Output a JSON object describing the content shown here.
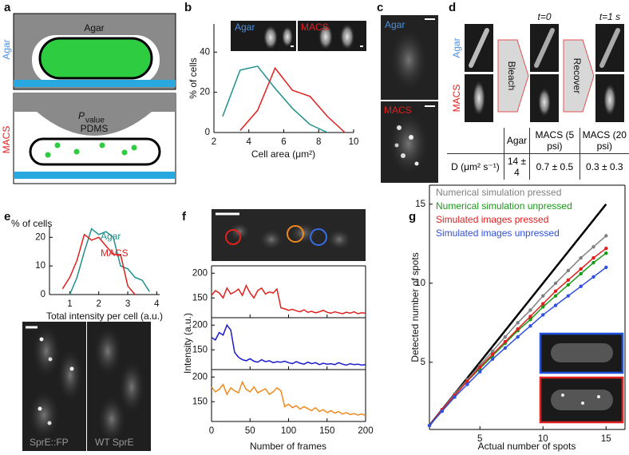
{
  "figure": {
    "panel_labels": [
      "a",
      "b",
      "c",
      "d",
      "e",
      "f",
      "g"
    ],
    "a": {
      "top_side": "Agar",
      "top_material": "Agar",
      "bottom_side": "MACS",
      "pressure_symbol": "P",
      "pressure_subscript": "value",
      "membrane": "PDMS"
    },
    "c": {
      "top": "Agar",
      "bottom": "MACS"
    },
    "d": {
      "rows": [
        "Agar",
        "MACS"
      ],
      "steps": [
        "Bleach",
        "Recover"
      ],
      "times": [
        "t=0",
        "t=1 s"
      ],
      "table": {
        "header": [
          "Agar",
          "MACS (5 psi)",
          "MACS (20 psi)"
        ],
        "row_label": "D (μm² s⁻¹)",
        "cells": [
          "14 ± 4",
          "0.7 ± 0.5",
          "0.3 ± 0.3"
        ]
      }
    },
    "e": {
      "images": [
        "SprE::FP",
        "WT SprE"
      ]
    }
  },
  "chart_data": [
    {
      "type": "line",
      "ylabel": "% of cells",
      "xlabel": "Cell area (μm²)",
      "x": [
        2.5,
        3.5,
        4.5,
        5.5,
        6.5,
        7.5,
        8.5,
        9.5
      ],
      "xlim": [
        2,
        10
      ],
      "xticks": [
        2,
        4,
        6,
        8,
        10
      ],
      "ylim": [
        0,
        54
      ],
      "yticks": [
        0,
        20,
        40
      ],
      "series": [
        {
          "name": "Agar",
          "color": "#1f8f8a",
          "values": [
            8,
            31,
            33,
            22,
            12,
            4,
            0,
            null
          ]
        },
        {
          "name": "MACS",
          "color": "#e02020",
          "values": [
            null,
            1,
            11,
            32,
            21,
            18,
            8,
            0
          ]
        }
      ]
    },
    {
      "type": "line",
      "ylabel": "% of cells",
      "xlabel": "Total intensity per cell (a.u.)",
      "legend": "upper right",
      "x": [
        0.75,
        1,
        1.25,
        1.5,
        1.75,
        2,
        2.25,
        2.5,
        2.75,
        3,
        3.25,
        3.5,
        3.75
      ],
      "xlim": [
        0.3,
        4.1
      ],
      "xticks": [
        1,
        2,
        3,
        4
      ],
      "ylim": [
        0,
        24
      ],
      "yticks": [
        0,
        10,
        20
      ],
      "series": [
        {
          "name": "Agar",
          "color": "#1f8f8a",
          "values": [
            null,
            0,
            6,
            15,
            23,
            21,
            22,
            20,
            10,
            9,
            6,
            5,
            1
          ]
        },
        {
          "name": "MACS",
          "color": "#e02020",
          "values": [
            2,
            6,
            12,
            21,
            19,
            20,
            17,
            14,
            14,
            3,
            0,
            null,
            null
          ]
        }
      ]
    },
    {
      "type": "line",
      "subplots": true,
      "ylabel": "Intensity (a.u.)",
      "xlabel": "Number of frames",
      "x": [
        0,
        5,
        10,
        15,
        20,
        25,
        30,
        35,
        40,
        45,
        50,
        55,
        60,
        65,
        70,
        75,
        80,
        85,
        90,
        95,
        100,
        105,
        110,
        115,
        120,
        125,
        130,
        135,
        140,
        145,
        150,
        155,
        160,
        165,
        170,
        175,
        180,
        185,
        190,
        195,
        200
      ],
      "xlim": [
        0,
        200
      ],
      "xticks": [
        0,
        50,
        100,
        150,
        200
      ],
      "ylim": [
        110,
        215
      ],
      "yticks": [
        150,
        200
      ],
      "series": [
        {
          "color": "#e0201c",
          "values": [
            155,
            165,
            160,
            150,
            170,
            158,
            162,
            168,
            155,
            175,
            160,
            150,
            165,
            170,
            158,
            162,
            160,
            168,
            130,
            128,
            125,
            127,
            124,
            122,
            126,
            121,
            123,
            120,
            122,
            125,
            121,
            119,
            122,
            120,
            118,
            121,
            119,
            122,
            118,
            120,
            119
          ]
        },
        {
          "color": "#1a1acc",
          "values": [
            175,
            170,
            185,
            180,
            200,
            190,
            145,
            135,
            130,
            128,
            132,
            127,
            125,
            130,
            126,
            128,
            124,
            126,
            125,
            127,
            124,
            122,
            126,
            123,
            121,
            125,
            122,
            124,
            120,
            123,
            121,
            122,
            120,
            124,
            121,
            119,
            122,
            120,
            121,
            119,
            120
          ]
        },
        {
          "color": "#f08a1c",
          "values": [
            180,
            170,
            175,
            185,
            165,
            178,
            172,
            168,
            190,
            175,
            170,
            180,
            168,
            172,
            176,
            165,
            170,
            178,
            172,
            140,
            145,
            138,
            142,
            135,
            140,
            136,
            132,
            138,
            130,
            134,
            128,
            132,
            127,
            130,
            125,
            128,
            124,
            126,
            123,
            125,
            122
          ]
        }
      ]
    },
    {
      "type": "line",
      "markers": true,
      "ylabel": "Detected number of spots",
      "xlabel": "Actual number of spots",
      "legend": "upper left",
      "x": [
        1,
        2,
        3,
        4,
        5,
        6,
        7,
        8,
        9,
        10,
        11,
        12,
        13,
        14,
        15
      ],
      "xlim": [
        1,
        16.5
      ],
      "xticks": [
        5,
        10,
        15
      ],
      "ylim": [
        0.75,
        16.2
      ],
      "yticks": [
        5,
        10,
        15
      ],
      "reference": {
        "x": [
          1,
          15
        ],
        "values": [
          1,
          15
        ],
        "color": "#000000"
      },
      "series": [
        {
          "name": "Numerical simulation pressed",
          "color": "#808080",
          "values": [
            1,
            2,
            3,
            3.9,
            4.8,
            5.7,
            6.6,
            7.5,
            8.3,
            9.2,
            10,
            10.8,
            11.6,
            12.3,
            13
          ]
        },
        {
          "name": "Numerical simulation unpressed",
          "color": "#1a9a1a",
          "values": [
            1,
            1.95,
            2.9,
            3.8,
            4.6,
            5.4,
            6.2,
            7,
            7.7,
            8.5,
            9.2,
            9.9,
            10.6,
            11.3,
            11.9
          ]
        },
        {
          "name": "Simulated images pressed",
          "color": "#e02020",
          "values": [
            1,
            2,
            2.9,
            3.8,
            4.7,
            5.5,
            6.3,
            7.1,
            7.9,
            8.7,
            9.5,
            10.2,
            10.9,
            11.6,
            12.2
          ]
        },
        {
          "name": "Simulated images unpressed",
          "color": "#3050e0",
          "values": [
            1,
            1.9,
            2.8,
            3.6,
            4.4,
            5.2,
            5.9,
            6.6,
            7.3,
            8,
            8.6,
            9.2,
            9.8,
            10.4,
            11
          ]
        }
      ]
    }
  ]
}
